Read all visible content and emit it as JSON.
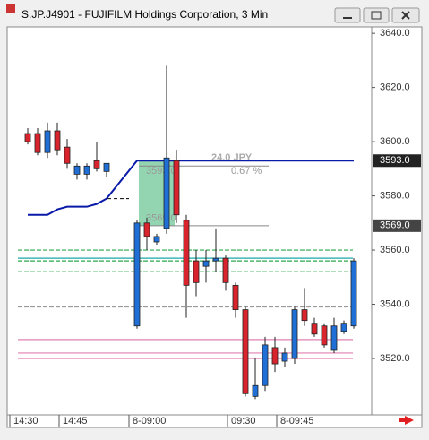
{
  "chart_data": {
    "type": "candlestick",
    "title": "S.JP.J4901 - FUJIFILM Holdings Corporation, 3 Min",
    "categories": [
      "14:30",
      null,
      null,
      null,
      null,
      "14:45",
      null,
      null,
      null,
      null,
      "8-09:00",
      null,
      null,
      null,
      null,
      null,
      null,
      null,
      null,
      null,
      "09:30",
      null,
      null,
      null,
      null,
      "8-09:45",
      null,
      null,
      null,
      null,
      null,
      null,
      null
    ],
    "open": [
      null,
      3603,
      3603,
      3596,
      3604,
      3598,
      3588,
      3588,
      3593,
      3589,
      3532,
      3570,
      3563,
      3568,
      3593,
      3571,
      3556,
      3554,
      3556,
      3557,
      3547,
      3538,
      3506,
      3510,
      3524,
      3519,
      3520,
      3538,
      3533,
      3532,
      3523,
      3530,
      3532
    ],
    "high": [
      null,
      3605,
      3605,
      3607,
      3607,
      3601,
      3592,
      3592,
      3600,
      3592,
      3571,
      3572,
      3566,
      3628,
      3597,
      3573,
      3560,
      3560,
      3568,
      3558,
      3548,
      3539,
      3520,
      3528,
      3528,
      3524,
      3539,
      3546,
      3535,
      3533,
      3535,
      3534,
      3557
    ],
    "low": [
      null,
      3599,
      3595,
      3594,
      3595,
      3590,
      3586,
      3586,
      3589,
      3587,
      3531,
      3560,
      3562,
      3566,
      3570,
      3535,
      3543,
      3548,
      3552,
      3545,
      3535,
      3506,
      3505,
      3508,
      3515,
      3517,
      3518,
      3532,
      3528,
      3524,
      3522,
      3529,
      3531
    ],
    "close": [
      null,
      3600,
      3596,
      3604,
      3597,
      3592,
      3591,
      3591,
      3590,
      3592,
      3570,
      3565,
      3565,
      3594,
      3573,
      3547,
      3548,
      3556,
      3557,
      3548,
      3538,
      3507,
      3510,
      3525,
      3518,
      3522,
      3538,
      3534,
      3529,
      3525,
      3532,
      3533,
      3556
    ],
    "up_color": "#1f6fd6",
    "down_color": "#d9232d",
    "trend": {
      "color": "#0a1aa8",
      "values": [
        null,
        3573,
        3573,
        3573,
        3575,
        3576,
        3576,
        3576,
        3577,
        3579,
        3593,
        3593,
        3593,
        3593,
        3593,
        3593,
        3593,
        3593,
        3593,
        3593,
        3593,
        3593,
        3593,
        3593,
        3593,
        3593,
        3593,
        3593,
        3593,
        3593,
        3593,
        3593,
        3593
      ]
    },
    "levels": [
      {
        "value": 3560,
        "color": "#2aa84a",
        "dash": true
      },
      {
        "value": 3557,
        "color": "#1aa8a8",
        "dash": false
      },
      {
        "value": 3556,
        "color": "#2aa84a",
        "dash": true
      },
      {
        "value": 3552,
        "color": "#2aa84a",
        "dash": true
      },
      {
        "value": 3539,
        "color": "#999999",
        "dash": true
      },
      {
        "value": 3527,
        "color": "#e080b0",
        "dash": false
      },
      {
        "value": 3522,
        "color": "#e080b0",
        "dash": false
      },
      {
        "value": 3520,
        "color": "#e080b0",
        "dash": false
      }
    ],
    "measure": {
      "from": 3569,
      "to": 3593,
      "start": 11,
      "end": 13,
      "color": "#3cb371",
      "labels": [
        "3593.0",
        "3569.0",
        "24.0 JPY",
        "0.67 %"
      ]
    },
    "markers": [
      {
        "value": 3593,
        "label": "3593.0"
      },
      {
        "value": 3569,
        "label": "3569.0"
      }
    ],
    "ylim": [
      3499.5,
      3641.7
    ],
    "yticks": [
      {
        "value": 3520,
        "label": "3520.0"
      },
      {
        "value": 3540,
        "label": "3540.0"
      },
      {
        "value": 3560,
        "label": "3560.0"
      },
      {
        "value": 3580,
        "label": "3580.0"
      },
      {
        "value": 3600,
        "label": "3600.0"
      },
      {
        "value": 3620,
        "label": "3620.0"
      },
      {
        "value": 3640,
        "label": "3640.0"
      }
    ]
  }
}
